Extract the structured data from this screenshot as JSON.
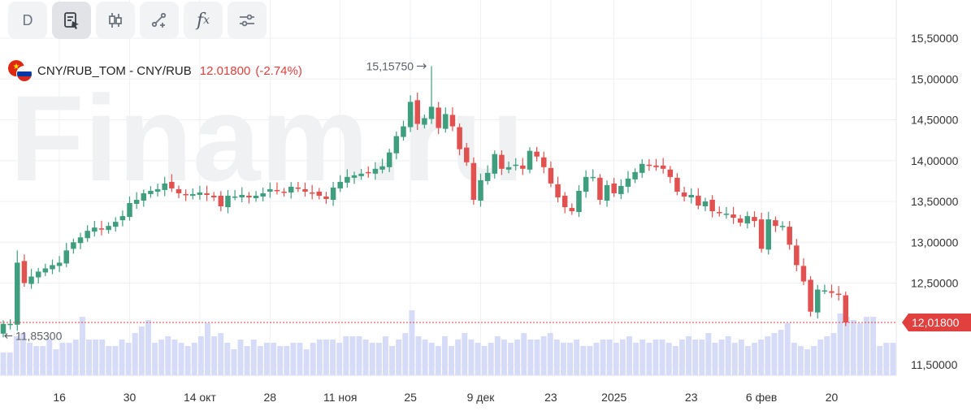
{
  "toolbar": {
    "interval_label": "D",
    "fx_label": "f",
    "fx_sub": "x",
    "buttons": [
      "interval",
      "script",
      "chart-type",
      "drawing",
      "indicators",
      "settings"
    ]
  },
  "legend": {
    "symbol": "CNY/RUB_TOM - CNY/RUB",
    "price": "12.01800",
    "change": "(-2.74%)"
  },
  "watermark": "Finam.ru",
  "colors": {
    "up": "#3e9e7e",
    "down": "#e0514f",
    "volume": "#d6dbf7",
    "price_line": "#e0403e",
    "grid": "#eef0f3"
  },
  "chart_data": {
    "type": "candlestick",
    "title": "CNY/RUB_TOM - CNY/RUB",
    "y_ticks": [
      "15,50000",
      "15,00000",
      "14,50000",
      "14,00000",
      "13,50000",
      "13,00000",
      "12,50000",
      "11,50000"
    ],
    "y_tick_values": [
      15.5,
      15.0,
      14.5,
      14.0,
      13.5,
      13.0,
      12.5,
      11.5
    ],
    "ylim": [
      11.4,
      15.85
    ],
    "x_ticks": [
      "16",
      "30",
      "14 окт",
      "28",
      "11 ноя",
      "25",
      "9 дек",
      "23",
      "2025",
      "23",
      "6 фев",
      "20"
    ],
    "x_tick_index": [
      8,
      18,
      28,
      38,
      48,
      58,
      68,
      78,
      87,
      98,
      108,
      118
    ],
    "current_price_label": "12,01800",
    "current_price": 12.018,
    "max_label": "15,15750",
    "max_value": 15.1575,
    "max_index": 61,
    "min_label": "11,85300",
    "min_value": 11.853,
    "min_index": 0,
    "closes": [
      12.0,
      12.0,
      12.75,
      12.5,
      12.58,
      12.64,
      12.68,
      12.72,
      12.75,
      12.9,
      13.0,
      13.06,
      13.14,
      13.18,
      13.16,
      13.2,
      13.25,
      13.32,
      13.48,
      13.52,
      13.6,
      13.63,
      13.65,
      13.72,
      13.66,
      13.6,
      13.58,
      13.59,
      13.61,
      13.58,
      13.55,
      13.44,
      13.57,
      13.56,
      13.58,
      13.55,
      13.57,
      13.6,
      13.65,
      13.63,
      13.62,
      13.68,
      13.66,
      13.62,
      13.6,
      13.57,
      13.53,
      13.67,
      13.74,
      13.8,
      13.82,
      13.84,
      13.85,
      13.9,
      13.93,
      14.1,
      14.3,
      14.42,
      14.72,
      14.45,
      14.52,
      14.66,
      14.4,
      14.57,
      14.42,
      14.14,
      13.98,
      13.52,
      13.76,
      13.85,
      14.08,
      13.9,
      13.92,
      13.95,
      13.9,
      14.12,
      14.05,
      13.92,
      13.72,
      13.55,
      13.43,
      13.38,
      13.63,
      13.8,
      13.8,
      13.52,
      13.7,
      13.6,
      13.69,
      13.78,
      13.86,
      13.96,
      13.95,
      13.92,
      13.9,
      13.8,
      13.62,
      13.56,
      13.58,
      13.45,
      13.5,
      13.38,
      13.36,
      13.35,
      13.3,
      13.24,
      13.32,
      13.26,
      12.92,
      13.28,
      13.2,
      13.2,
      12.97,
      12.72,
      12.52,
      12.15,
      12.42,
      12.41,
      12.38,
      12.36,
      12.018
    ]
  },
  "volume": {
    "values": [
      0.35,
      0.35,
      0.6,
      0.65,
      0.5,
      0.45,
      0.45,
      0.55,
      0.4,
      0.5,
      0.5,
      0.55,
      0.9,
      0.55,
      0.55,
      0.55,
      0.45,
      0.45,
      0.55,
      0.5,
      0.65,
      0.75,
      0.85,
      0.5,
      0.55,
      0.6,
      0.55,
      0.5,
      0.45,
      0.5,
      0.6,
      0.8,
      0.6,
      0.65,
      0.5,
      0.4,
      0.55,
      0.45,
      0.55,
      0.45,
      0.5,
      0.5,
      0.45,
      0.45,
      0.5,
      0.5,
      0.4,
      0.5,
      0.55,
      0.55,
      0.55,
      0.5,
      0.6,
      0.6,
      0.6,
      0.55,
      0.5,
      0.5,
      0.6,
      0.45,
      0.55,
      0.65,
      1.0,
      0.6,
      0.55,
      0.5,
      0.45,
      0.6,
      0.45,
      0.55,
      0.65,
      0.55,
      0.5,
      0.45,
      0.5,
      0.6,
      0.55,
      0.5,
      0.55,
      0.65,
      0.55,
      0.55,
      0.6,
      0.65,
      0.55,
      0.5,
      0.5,
      0.55,
      0.45,
      0.45,
      0.5,
      0.55,
      0.55,
      0.5,
      0.55,
      0.6,
      0.5,
      0.55,
      0.5,
      0.55,
      0.55,
      0.5,
      0.45,
      0.55,
      0.6,
      0.55,
      0.55,
      0.65,
      0.5,
      0.55,
      0.6,
      0.5,
      0.55,
      0.45,
      0.5,
      0.55,
      0.6,
      0.65,
      0.7,
      0.8,
      0.5,
      0.45,
      0.4,
      0.45,
      0.55,
      0.6,
      0.65,
      0.95,
      0.9,
      0.85,
      0.8,
      0.9,
      0.9,
      0.45,
      0.5,
      0.5
    ]
  }
}
